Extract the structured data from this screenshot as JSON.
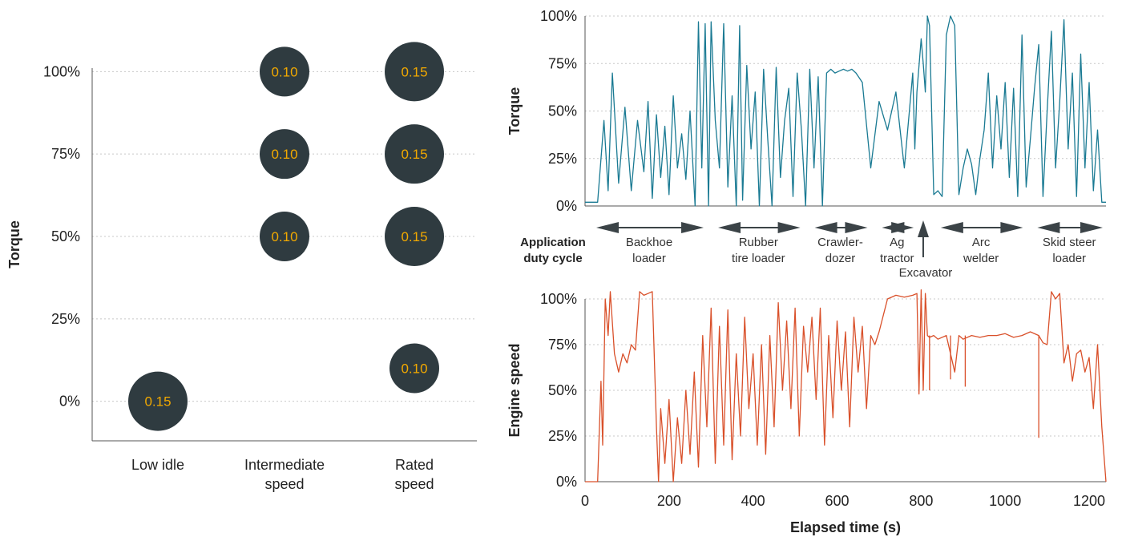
{
  "chart_data": [
    {
      "type": "scatter",
      "ylabel": "Torque",
      "y_ticks": [
        "0%",
        "25%",
        "50%",
        "75%",
        "100%"
      ],
      "categories": [
        {
          "lines": [
            "Low idle"
          ]
        },
        {
          "lines": [
            "Intermediate",
            "speed"
          ]
        },
        {
          "lines": [
            "Rated",
            "speed"
          ]
        }
      ],
      "points": [
        {
          "category": 0,
          "torque": 0,
          "weight": "0.15"
        },
        {
          "category": 1,
          "torque": 100,
          "weight": "0.10"
        },
        {
          "category": 1,
          "torque": 75,
          "weight": "0.10"
        },
        {
          "category": 1,
          "torque": 50,
          "weight": "0.10"
        },
        {
          "category": 2,
          "torque": 100,
          "weight": "0.15"
        },
        {
          "category": 2,
          "torque": 75,
          "weight": "0.15"
        },
        {
          "category": 2,
          "torque": 50,
          "weight": "0.15"
        },
        {
          "category": 2,
          "torque": 10,
          "weight": "0.10"
        }
      ],
      "ylim": [
        -12,
        112
      ],
      "grid": true,
      "colors": {
        "bubble": "#2f3b40",
        "label": "#f2a900"
      }
    },
    {
      "type": "line",
      "ylabel": "Torque",
      "y_ticks": [
        "0%",
        "25%",
        "50%",
        "75%",
        "100%"
      ],
      "xlim": [
        0,
        1240
      ],
      "ylim": [
        0,
        100
      ],
      "grid": true,
      "color": "#1a7a93",
      "x": [
        0,
        30,
        45,
        55,
        65,
        80,
        95,
        110,
        125,
        140,
        150,
        160,
        170,
        180,
        190,
        200,
        210,
        220,
        230,
        240,
        250,
        262,
        270,
        278,
        286,
        294,
        300,
        310,
        320,
        330,
        340,
        350,
        360,
        368,
        375,
        385,
        395,
        405,
        415,
        425,
        435,
        445,
        455,
        465,
        475,
        485,
        495,
        505,
        515,
        525,
        535,
        545,
        555,
        565,
        575,
        585,
        595,
        605,
        615,
        625,
        635,
        645,
        660,
        680,
        700,
        720,
        740,
        760,
        780,
        785,
        790,
        800,
        805,
        810,
        815,
        820,
        830,
        840,
        850,
        860,
        870,
        880,
        890,
        900,
        910,
        920,
        930,
        940,
        950,
        960,
        970,
        980,
        990,
        1000,
        1010,
        1020,
        1030,
        1040,
        1050,
        1060,
        1070,
        1080,
        1090,
        1100,
        1110,
        1120,
        1130,
        1140,
        1150,
        1160,
        1170,
        1180,
        1190,
        1200,
        1210,
        1220,
        1230,
        1240
      ],
      "y": [
        2,
        2,
        45,
        8,
        70,
        12,
        52,
        8,
        45,
        18,
        55,
        4,
        48,
        15,
        42,
        6,
        58,
        20,
        38,
        14,
        50,
        0,
        97,
        20,
        96,
        0,
        97,
        45,
        20,
        96,
        10,
        58,
        0,
        95,
        3,
        74,
        30,
        60,
        0,
        72,
        35,
        0,
        73,
        15,
        45,
        62,
        5,
        70,
        40,
        0,
        72,
        20,
        68,
        0,
        70,
        72,
        70,
        71,
        72,
        71,
        72,
        70,
        65,
        20,
        55,
        40,
        60,
        20,
        70,
        30,
        60,
        88,
        75,
        60,
        100,
        95,
        6,
        8,
        5,
        90,
        100,
        95,
        6,
        20,
        30,
        22,
        6,
        25,
        40,
        70,
        20,
        58,
        30,
        65,
        15,
        62,
        5,
        90,
        10,
        35,
        62,
        85,
        5,
        50,
        92,
        20,
        55,
        98,
        30,
        70,
        5,
        80,
        20,
        65,
        8,
        40,
        2,
        2
      ],
      "duty_cycle_label": [
        "Application",
        "duty cycle"
      ],
      "duty_cycles": [
        {
          "lines": [
            "Backhoe",
            "loader"
          ],
          "start": 0,
          "end": 290
        },
        {
          "lines": [
            "Rubber",
            "tire loader"
          ],
          "start": 290,
          "end": 520
        },
        {
          "lines": [
            "Crawler-",
            "dozer"
          ],
          "start": 520,
          "end": 680
        },
        {
          "lines": [
            "Ag",
            "tractor"
          ],
          "start": 680,
          "end": 790
        },
        {
          "lines": [
            "Arc",
            "welder"
          ],
          "start": 820,
          "end": 1050
        },
        {
          "lines": [
            "Skid steer",
            "loader"
          ],
          "start": 1050,
          "end": 1240
        }
      ],
      "marker": {
        "label": "Excavator",
        "x": 805
      }
    },
    {
      "type": "line",
      "ylabel": "Engine speed",
      "xlabel": "Elapsed time (s)",
      "x_ticks": [
        0,
        200,
        400,
        600,
        800,
        1000,
        1200
      ],
      "y_ticks": [
        "0%",
        "25%",
        "50%",
        "75%",
        "100%"
      ],
      "xlim": [
        0,
        1240
      ],
      "ylim": [
        0,
        100
      ],
      "grid": true,
      "color": "#d9502a",
      "x": [
        0,
        30,
        38,
        42,
        48,
        55,
        60,
        70,
        80,
        90,
        100,
        110,
        120,
        130,
        140,
        150,
        160,
        170,
        175,
        180,
        190,
        200,
        210,
        220,
        230,
        240,
        250,
        260,
        270,
        280,
        290,
        300,
        310,
        320,
        330,
        340,
        350,
        360,
        370,
        380,
        390,
        400,
        410,
        420,
        430,
        440,
        450,
        460,
        470,
        480,
        490,
        500,
        510,
        520,
        530,
        540,
        550,
        560,
        570,
        580,
        590,
        600,
        610,
        620,
        630,
        640,
        650,
        660,
        670,
        680,
        690,
        700,
        720,
        740,
        760,
        780,
        790,
        795,
        800,
        805,
        810,
        815,
        820,
        830,
        840,
        860,
        880,
        890,
        900,
        920,
        940,
        960,
        980,
        1000,
        1020,
        1040,
        1060,
        1080,
        1090,
        1100,
        1110,
        1120,
        1130,
        1140,
        1150,
        1160,
        1170,
        1180,
        1190,
        1200,
        1210,
        1220,
        1230,
        1240
      ],
      "y": [
        0,
        0,
        55,
        20,
        100,
        80,
        104,
        70,
        60,
        70,
        65,
        75,
        72,
        104,
        102,
        103,
        104,
        30,
        0,
        40,
        10,
        45,
        0,
        35,
        10,
        50,
        15,
        60,
        8,
        80,
        30,
        95,
        10,
        85,
        20,
        94,
        12,
        70,
        25,
        90,
        40,
        70,
        20,
        75,
        15,
        80,
        30,
        98,
        50,
        88,
        40,
        95,
        25,
        85,
        60,
        90,
        45,
        95,
        20,
        80,
        35,
        88,
        50,
        82,
        30,
        90,
        60,
        85,
        40,
        80,
        75,
        82,
        100,
        102,
        101,
        102,
        103,
        48,
        105,
        50,
        103,
        80,
        79,
        80,
        78,
        80,
        60,
        80,
        78,
        80,
        79,
        80,
        80,
        81,
        79,
        80,
        82,
        80,
        76,
        75,
        104,
        100,
        103,
        65,
        75,
        55,
        70,
        72,
        60,
        68,
        40,
        75,
        30,
        0
      ],
      "spikes_down": [
        {
          "x": 820,
          "y": 50
        },
        {
          "x": 870,
          "y": 56
        },
        {
          "x": 905,
          "y": 52
        },
        {
          "x": 1080,
          "y": 24
        }
      ]
    }
  ]
}
